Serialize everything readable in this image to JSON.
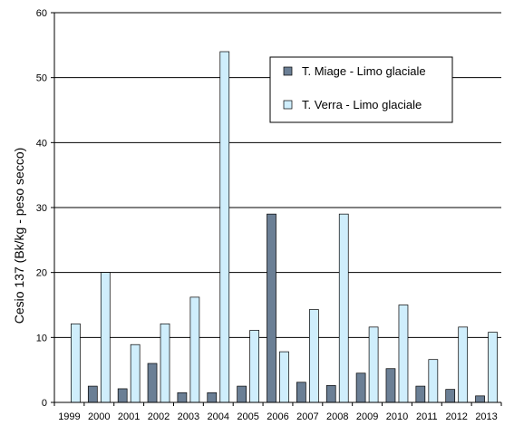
{
  "chart_data": {
    "type": "bar",
    "categories": [
      "1999",
      "2000",
      "2001",
      "2002",
      "2003",
      "2004",
      "2005",
      "2006",
      "2007",
      "2008",
      "2009",
      "2010",
      "2011",
      "2012",
      "2013"
    ],
    "series": [
      {
        "name": "T. Miage - Limo glaciale",
        "color": "#6b7f95",
        "values": [
          null,
          2.5,
          2.1,
          6.0,
          1.5,
          1.5,
          2.5,
          29.0,
          3.1,
          2.6,
          4.5,
          5.2,
          2.5,
          2.0,
          1.0
        ]
      },
      {
        "name": "T. Verra - Limo glaciale",
        "color": "#cfeefc",
        "values": [
          12.1,
          20.0,
          8.9,
          12.1,
          16.2,
          54.0,
          11.1,
          7.8,
          14.3,
          29.0,
          11.6,
          15.0,
          6.6,
          11.6,
          10.8
        ]
      }
    ],
    "ylabel": "Cesio 137 (Bk/kg - peso secco)",
    "xlabel": "",
    "title": "",
    "ylim": [
      0,
      60
    ],
    "yticks": [
      0,
      10,
      20,
      30,
      40,
      50,
      60
    ],
    "grid": true,
    "legend_position": "top-right"
  }
}
